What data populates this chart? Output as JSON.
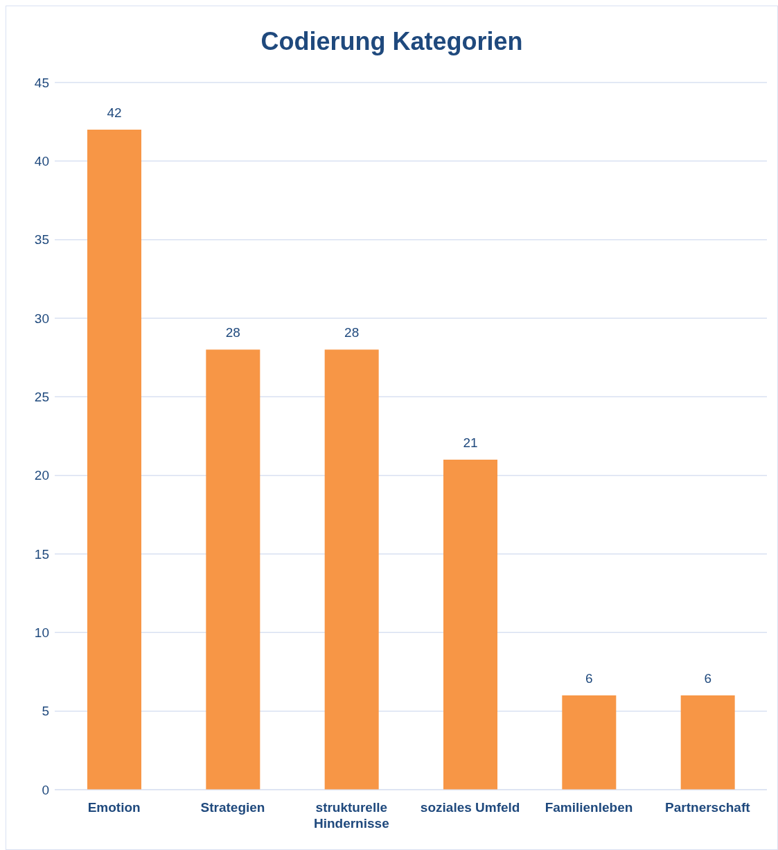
{
  "chart_data": {
    "type": "bar",
    "title": "Codierung Kategorien",
    "categories": [
      "Emotion",
      "Strategien",
      "strukturelle Hindernisse",
      "soziales Umfeld",
      "Familienleben",
      "Partnerschaft"
    ],
    "values": [
      42,
      28,
      28,
      21,
      6,
      6
    ],
    "color": "#f79646",
    "ylim": [
      0,
      45
    ],
    "yticks": [
      0,
      5,
      10,
      15,
      20,
      25,
      30,
      35,
      40,
      45
    ],
    "grid": "y",
    "data_labels": true
  }
}
